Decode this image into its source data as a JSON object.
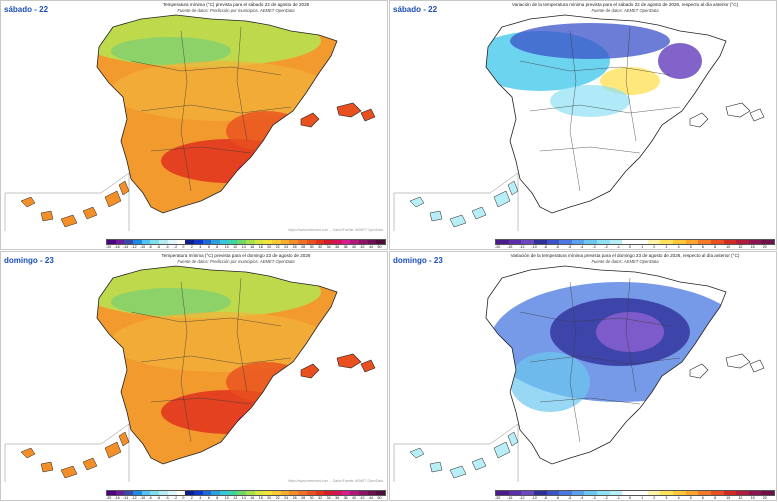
{
  "panels": [
    {
      "day": "sábado - 22",
      "title": "Temperatura mínima (°C) prevista para el sábado 22 de agosto de 2026",
      "subtitle": "Fuente de datos: Predicción por municipios. AEMET OpenData",
      "credit": "https://www.meteored.com ... Datos/Fuente: AEMET OpenData",
      "scale": "temp"
    },
    {
      "day": "sábado - 22",
      "title": "Variación de la temperatura mínima prevista para el sábado 22 de agosto de 2026, respecto al día anterior (°C)",
      "subtitle": "Fuente de datos: AEMET OpenData",
      "credit": "",
      "scale": "diff"
    },
    {
      "day": "domingo - 23",
      "title": "Temperatura mínima (°C) prevista para el domingo 23 de agosto de 2026",
      "subtitle": "Fuente de datos: Predicción por municipios. AEMET OpenData",
      "credit": "https://www.meteored.com ... Datos/Fuente: AEMET OpenData",
      "scale": "temp"
    },
    {
      "day": "domingo - 23",
      "title": "Variación de la temperatura mínima prevista para el domingo 23 de agosto de 2026, respecto al día anterior (°C)",
      "subtitle": "Fuente de datos: AEMET OpenData",
      "credit": "",
      "scale": "diff"
    }
  ],
  "legend_temp": {
    "ticks": [
      "-20",
      "-16",
      "-14",
      "-12",
      "-10",
      "-8",
      "-6",
      "-4",
      "-2",
      "0",
      "2",
      "4",
      "6",
      "8",
      "10",
      "12",
      "14",
      "16",
      "18",
      "20",
      "22",
      "24",
      "26",
      "28",
      "30",
      "32",
      "34",
      "36",
      "38",
      "40",
      "42",
      "44",
      "50"
    ],
    "colors": [
      "#4b0082",
      "#6a1b9a",
      "#3949ab",
      "#1e88e5",
      "#4fc3f7",
      "#80deea",
      "#b2ebf2",
      "#e0f7fa",
      "#ffffff",
      "#0b1e8c",
      "#1035c8",
      "#1e6bd8",
      "#2aa0e0",
      "#34c8d8",
      "#3cd6a0",
      "#6fd86a",
      "#a8e04c",
      "#d7e640",
      "#f2e23a",
      "#f7c933",
      "#f6ad2d",
      "#f28f28",
      "#ee7023",
      "#e9501f",
      "#e2311d",
      "#d51a2a",
      "#d4145a",
      "#d81b8e",
      "#b0177b",
      "#8a1366",
      "#6b0f52",
      "#4d0b3c"
    ]
  },
  "legend_diff": {
    "ticks": [
      "-20",
      "-15",
      "-12",
      "-10",
      "-8",
      "-6",
      "-5",
      "-4",
      "-3",
      "-2",
      "-1",
      "0",
      "1",
      "2",
      "3",
      "4",
      "5",
      "6",
      "8",
      "10",
      "12",
      "15",
      "20"
    ],
    "colors": [
      "#4b1a8c",
      "#5a2ea8",
      "#6b48c0",
      "#2f2f9a",
      "#3a52c8",
      "#4a78e0",
      "#5aa0ec",
      "#6cc8f0",
      "#8ee0f4",
      "#b8eef8",
      "#ffffff",
      "#ffffff",
      "#fff3a8",
      "#ffe25a",
      "#ffc83a",
      "#ffa42e",
      "#f57a28",
      "#e84f22",
      "#d12a26",
      "#b01c3c",
      "#8c1450",
      "#701048"
    ]
  }
}
